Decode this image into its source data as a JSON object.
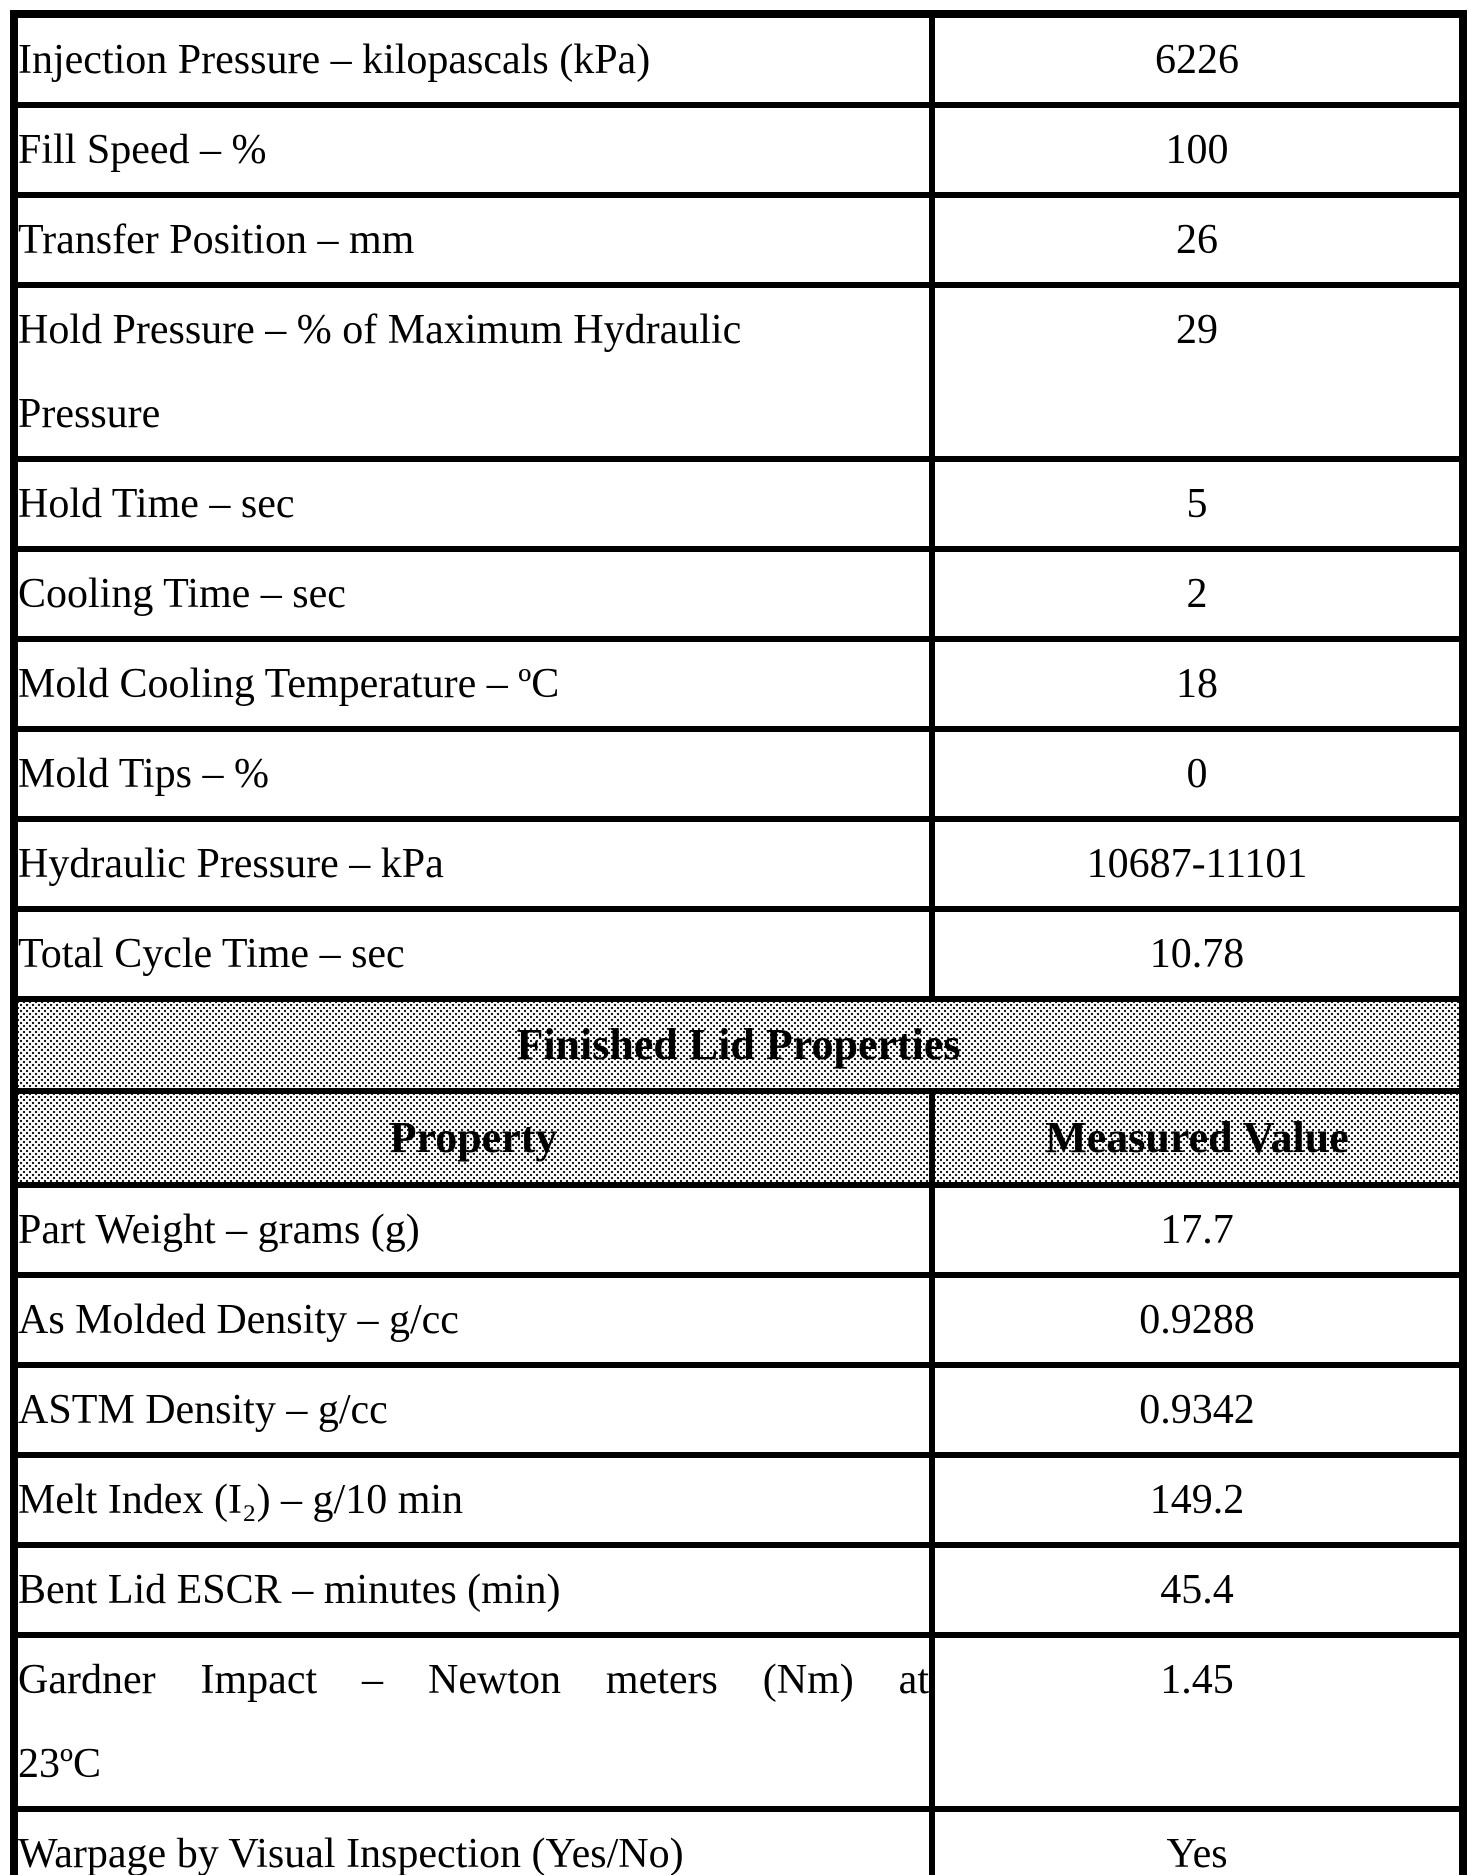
{
  "colors": {
    "border": "#000000",
    "text": "#000000",
    "page_background": "#ffffff",
    "header_stipple_dot": "#111111"
  },
  "table": {
    "process_rows": [
      {
        "label": "Injection Pressure – kilopascals (kPa)",
        "value": "6226"
      },
      {
        "label": "Fill Speed – %",
        "value": "100"
      },
      {
        "label": "Transfer Position – mm",
        "value": "26"
      },
      {
        "label": "Hold Pressure – % of Maximum Hydraulic\nPressure",
        "value": "29"
      },
      {
        "label": "Hold Time – sec",
        "value": "5"
      },
      {
        "label": "Cooling Time – sec",
        "value": "2"
      },
      {
        "label": "Mold Cooling Temperature – ºC",
        "value": "18"
      },
      {
        "label": "Mold Tips – %",
        "value": "0"
      },
      {
        "label": "Hydraulic Pressure – kPa",
        "value": "10687-11101"
      },
      {
        "label": "Total Cycle Time – sec",
        "value": "10.78"
      }
    ],
    "section_header": "Finished Lid Properties",
    "columns": {
      "property": "Property",
      "value": "Measured Value"
    },
    "finished_lid_rows": [
      {
        "label": "Part Weight – grams (g)",
        "value": "17.7"
      },
      {
        "label": "As Molded Density – g/cc",
        "value": "0.9288"
      },
      {
        "label": "ASTM Density – g/cc",
        "value": "0.9342"
      },
      {
        "label": "Melt Index (I₂) – g/10 min",
        "value": "149.2"
      },
      {
        "label": "Bent Lid ESCR – minutes (min)",
        "value": "45.4"
      },
      {
        "label": "Gardner Impact – Newton meters (Nm) at\n23ºC",
        "value": "1.45"
      },
      {
        "label": "Warpage by Visual Inspection (Yes/No)",
        "value": "Yes"
      }
    ]
  }
}
